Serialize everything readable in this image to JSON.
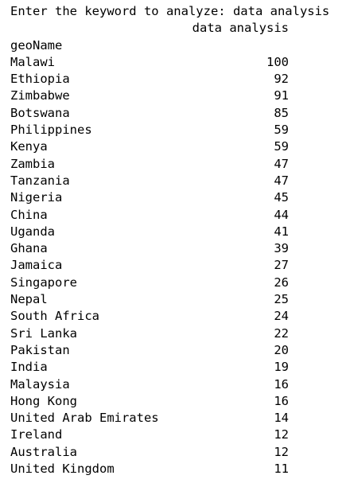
{
  "prompt": {
    "text": "Enter the keyword to analyze: data analysis"
  },
  "table": {
    "column_header": "data analysis",
    "index_name": "geoName",
    "rows": [
      {
        "name": "Malawi",
        "value": "100"
      },
      {
        "name": "Ethiopia",
        "value": "92"
      },
      {
        "name": "Zimbabwe",
        "value": "91"
      },
      {
        "name": "Botswana",
        "value": "85"
      },
      {
        "name": "Philippines",
        "value": "59"
      },
      {
        "name": "Kenya",
        "value": "59"
      },
      {
        "name": "Zambia",
        "value": "47"
      },
      {
        "name": "Tanzania",
        "value": "47"
      },
      {
        "name": "Nigeria",
        "value": "45"
      },
      {
        "name": "China",
        "value": "44"
      },
      {
        "name": "Uganda",
        "value": "41"
      },
      {
        "name": "Ghana",
        "value": "39"
      },
      {
        "name": "Jamaica",
        "value": "27"
      },
      {
        "name": "Singapore",
        "value": "26"
      },
      {
        "name": "Nepal",
        "value": "25"
      },
      {
        "name": "South Africa",
        "value": "24"
      },
      {
        "name": "Sri Lanka",
        "value": "22"
      },
      {
        "name": "Pakistan",
        "value": "20"
      },
      {
        "name": "India",
        "value": "19"
      },
      {
        "name": "Malaysia",
        "value": "16"
      },
      {
        "name": "Hong Kong",
        "value": "16"
      },
      {
        "name": "United Arab Emirates",
        "value": "14"
      },
      {
        "name": "Ireland",
        "value": "12"
      },
      {
        "name": "Australia",
        "value": "12"
      },
      {
        "name": "United Kingdom",
        "value": "11"
      }
    ]
  }
}
